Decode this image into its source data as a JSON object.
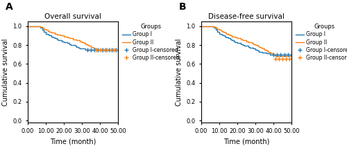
{
  "chart_data": [
    {
      "type": "step",
      "title": "Overall survival",
      "panel_label": "A",
      "x_label": "Time (month)",
      "y_label": "Cumulative survival",
      "xlim": [
        0,
        50
      ],
      "ylim": [
        -0.02,
        1.05
      ],
      "xticks": [
        {
          "value": 0,
          "label": "0.00"
        },
        {
          "value": 10,
          "label": "10.00"
        },
        {
          "value": 20,
          "label": "20.00"
        },
        {
          "value": 30,
          "label": "30.00"
        },
        {
          "value": 40,
          "label": "40.00"
        },
        {
          "value": 50,
          "label": "50.00"
        }
      ],
      "yticks": [
        {
          "value": 0,
          "label": "0.0"
        },
        {
          "value": 0.2,
          "label": "0.2"
        },
        {
          "value": 0.4,
          "label": "0.4"
        },
        {
          "value": 0.6,
          "label": "0.6"
        },
        {
          "value": 0.8,
          "label": "0.8"
        },
        {
          "value": 1,
          "label": "1.0"
        }
      ],
      "legend": "upper left",
      "legend_title": "Groups",
      "series": [
        {
          "name": "Group I",
          "type": "step",
          "color": "#1f77b4",
          "x": [
            0,
            6,
            7,
            8,
            9,
            10,
            11,
            12,
            13,
            14,
            15,
            16,
            17,
            18,
            19,
            20,
            21,
            22,
            23,
            24,
            25,
            26,
            27,
            28,
            29,
            30,
            31,
            32,
            33,
            50
          ],
          "values": [
            1.0,
            1.0,
            0.98,
            0.96,
            0.94,
            0.92,
            0.91,
            0.9,
            0.89,
            0.88,
            0.87,
            0.86,
            0.85,
            0.85,
            0.84,
            0.83,
            0.83,
            0.82,
            0.81,
            0.8,
            0.8,
            0.79,
            0.78,
            0.77,
            0.76,
            0.76,
            0.76,
            0.75,
            0.75,
            0.75
          ]
        },
        {
          "name": "Group II",
          "type": "step",
          "color": "#ff7f0e",
          "x": [
            0,
            6,
            7,
            8,
            9,
            10,
            11,
            12,
            13,
            14,
            15,
            16,
            17,
            18,
            19,
            20,
            21,
            22,
            23,
            24,
            25,
            26,
            27,
            28,
            29,
            30,
            31,
            32,
            33,
            34,
            35,
            36,
            37,
            38,
            50
          ],
          "values": [
            1.0,
            1.0,
            0.99,
            0.98,
            0.97,
            0.96,
            0.95,
            0.94,
            0.93,
            0.93,
            0.92,
            0.91,
            0.91,
            0.9,
            0.9,
            0.89,
            0.89,
            0.88,
            0.87,
            0.87,
            0.86,
            0.86,
            0.85,
            0.85,
            0.84,
            0.83,
            0.82,
            0.81,
            0.8,
            0.79,
            0.78,
            0.77,
            0.76,
            0.75,
            0.75
          ]
        },
        {
          "name": "Group I-censored",
          "type": "scatter",
          "marker": "+",
          "color": "#1f77b4",
          "x": [
            33,
            35,
            37,
            39,
            41,
            43,
            45,
            47,
            49
          ],
          "values": [
            0.75,
            0.75,
            0.75,
            0.75,
            0.75,
            0.75,
            0.75,
            0.75,
            0.75
          ]
        },
        {
          "name": "Group II-censored",
          "type": "scatter",
          "marker": "+",
          "color": "#ff7f0e",
          "x": [
            38,
            40,
            42,
            44,
            46,
            48,
            50
          ],
          "values": [
            0.75,
            0.75,
            0.75,
            0.75,
            0.75,
            0.75,
            0.75
          ]
        }
      ]
    },
    {
      "type": "step",
      "title": "Disease-free survival",
      "panel_label": "B",
      "x_label": "Time (month)",
      "y_label": "Cumulative survival",
      "xlim": [
        0,
        50
      ],
      "ylim": [
        -0.02,
        1.05
      ],
      "xticks": [
        {
          "value": 0,
          "label": "0.00"
        },
        {
          "value": 10,
          "label": "10.00"
        },
        {
          "value": 20,
          "label": "20.00"
        },
        {
          "value": 30,
          "label": "30.00"
        },
        {
          "value": 40,
          "label": "40.00"
        },
        {
          "value": 50,
          "label": "50.00"
        }
      ],
      "yticks": [
        {
          "value": 0,
          "label": "0.0"
        },
        {
          "value": 0.2,
          "label": "0.2"
        },
        {
          "value": 0.4,
          "label": "0.4"
        },
        {
          "value": 0.6,
          "label": "0.6"
        },
        {
          "value": 0.8,
          "label": "0.8"
        },
        {
          "value": 1,
          "label": "1.0"
        }
      ],
      "legend": "upper left",
      "legend_title": "Groups",
      "series": [
        {
          "name": "Group I",
          "type": "step",
          "color": "#1f77b4",
          "x": [
            0,
            6,
            7,
            8,
            9,
            10,
            11,
            12,
            13,
            14,
            15,
            16,
            17,
            18,
            19,
            20,
            21,
            22,
            23,
            24,
            25,
            26,
            27,
            28,
            29,
            30,
            31,
            32,
            33,
            34,
            35,
            36,
            37,
            38,
            39,
            40,
            50
          ],
          "values": [
            1.0,
            1.0,
            0.98,
            0.96,
            0.94,
            0.92,
            0.91,
            0.9,
            0.89,
            0.88,
            0.87,
            0.86,
            0.85,
            0.84,
            0.83,
            0.82,
            0.82,
            0.81,
            0.8,
            0.79,
            0.79,
            0.78,
            0.77,
            0.77,
            0.76,
            0.75,
            0.74,
            0.73,
            0.73,
            0.72,
            0.72,
            0.71,
            0.71,
            0.7,
            0.7,
            0.7,
            0.7
          ]
        },
        {
          "name": "Group II",
          "type": "step",
          "color": "#ff7f0e",
          "x": [
            0,
            6,
            7,
            8,
            9,
            10,
            11,
            12,
            13,
            14,
            15,
            16,
            17,
            18,
            19,
            20,
            21,
            22,
            23,
            24,
            25,
            26,
            27,
            28,
            29,
            30,
            31,
            32,
            33,
            34,
            35,
            36,
            37,
            38,
            39,
            40,
            41,
            50
          ],
          "values": [
            1.0,
            1.0,
            0.99,
            0.98,
            0.97,
            0.96,
            0.95,
            0.94,
            0.93,
            0.92,
            0.91,
            0.9,
            0.89,
            0.89,
            0.88,
            0.87,
            0.87,
            0.86,
            0.85,
            0.85,
            0.84,
            0.83,
            0.83,
            0.82,
            0.81,
            0.8,
            0.79,
            0.78,
            0.77,
            0.76,
            0.75,
            0.74,
            0.73,
            0.72,
            0.71,
            0.7,
            0.68,
            0.65
          ]
        },
        {
          "name": "Group I-censored",
          "type": "scatter",
          "marker": "+",
          "color": "#1f77b4",
          "x": [
            40,
            42,
            44,
            46,
            48,
            50
          ],
          "values": [
            0.7,
            0.7,
            0.7,
            0.7,
            0.7,
            0.7
          ]
        },
        {
          "name": "Group II-censored",
          "type": "scatter",
          "marker": "+",
          "color": "#ff7f0e",
          "x": [
            41,
            43,
            45,
            47,
            49
          ],
          "values": [
            0.65,
            0.65,
            0.65,
            0.65,
            0.65
          ]
        }
      ]
    }
  ]
}
